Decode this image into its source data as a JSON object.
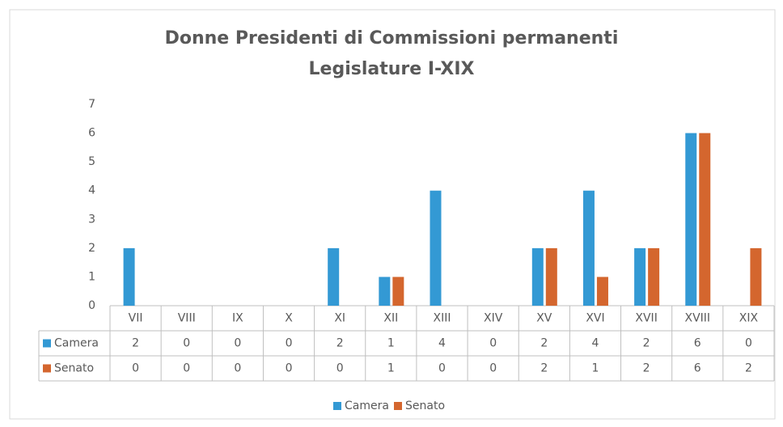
{
  "chart_data": {
    "type": "bar",
    "title": "Donne Presidenti di Commissioni permanenti",
    "subtitle": "Legislature I-XIX",
    "categories": [
      "VII",
      "VIII",
      "IX",
      "X",
      "XI",
      "XII",
      "XIII",
      "XIV",
      "XV",
      "XVI",
      "XVII",
      "XVIII",
      "XIX"
    ],
    "series": [
      {
        "name": "Camera",
        "color": "#3399d4",
        "values": [
          2,
          0,
          0,
          0,
          2,
          1,
          4,
          0,
          2,
          4,
          2,
          6,
          0
        ]
      },
      {
        "name": "Senato",
        "color": "#d4662e",
        "values": [
          0,
          0,
          0,
          0,
          0,
          1,
          0,
          0,
          2,
          1,
          2,
          6,
          2
        ]
      }
    ],
    "ylim": [
      0,
      7
    ],
    "yticks": [
      0,
      1,
      2,
      3,
      4,
      5,
      6,
      7
    ],
    "grid": false,
    "legend": "bottom"
  }
}
